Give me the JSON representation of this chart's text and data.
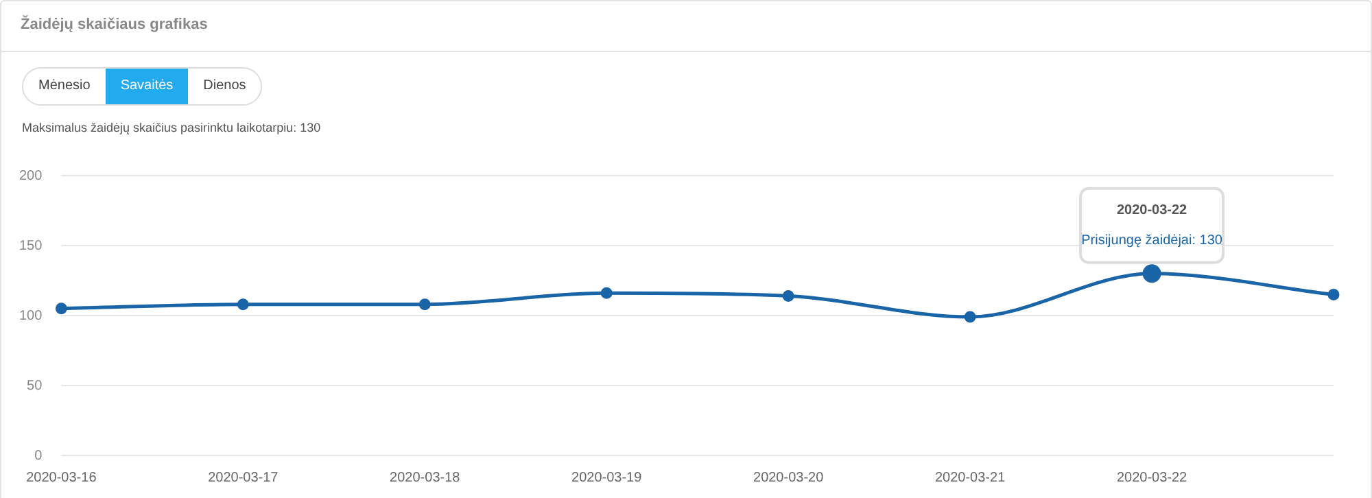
{
  "chart_data": {
    "type": "line",
    "title": "Žaidėjų skaičiaus grafikas",
    "subtitle": "Maksimalus žaidėjų skaičius pasirinktu laikotarpiu: 130",
    "categories": [
      "2020-03-16",
      "2020-03-17",
      "2020-03-18",
      "2020-03-19",
      "2020-03-20",
      "2020-03-21",
      "2020-03-22",
      null
    ],
    "series": [
      {
        "color": "#1a64a8",
        "values": [
          105,
          108,
          108,
          116,
          114,
          99,
          130,
          115
        ]
      }
    ],
    "ylim": [
      0,
      200
    ],
    "yticks": [
      0,
      50,
      100,
      150,
      200
    ],
    "grid": "y",
    "legend": false,
    "marker": "circle",
    "line_style": "solid",
    "annotations": [
      "Mėnesio",
      "Savaitės",
      "Dienos",
      "2020-03-22",
      {
        "text": "Prisijungę žaidėjai: 130",
        "x": "2020-03-22",
        "y": 130
      }
    ]
  }
}
